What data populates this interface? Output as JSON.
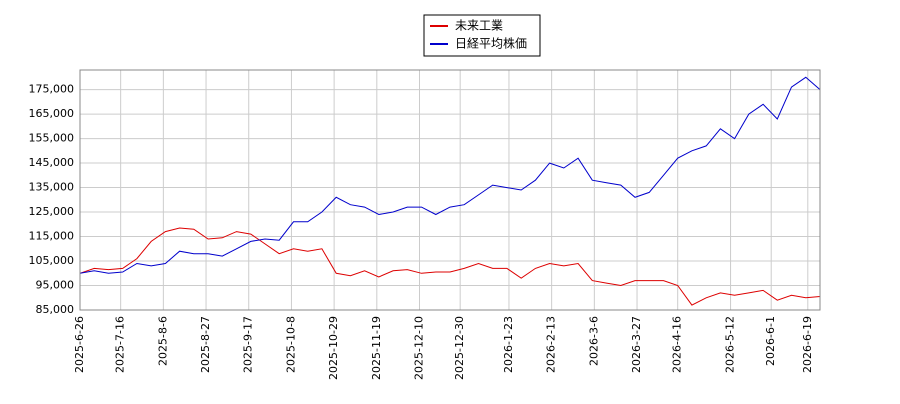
{
  "chart_data": {
    "type": "line",
    "x": [
      "2025-6-26",
      "2025-7-3",
      "2025-7-10",
      "2025-7-17",
      "2025-7-24",
      "2025-7-31",
      "2025-8-7",
      "2025-8-14",
      "2025-8-21",
      "2025-8-28",
      "2025-9-4",
      "2025-9-11",
      "2025-9-18",
      "2025-9-25",
      "2025-10-2",
      "2025-10-9",
      "2025-10-16",
      "2025-10-23",
      "2025-10-30",
      "2025-11-6",
      "2025-11-13",
      "2025-11-20",
      "2025-11-27",
      "2025-12-4",
      "2025-12-11",
      "2025-12-18",
      "2025-12-25",
      "2026-1-1",
      "2026-1-8",
      "2026-1-15",
      "2026-1-22",
      "2026-1-29",
      "2026-2-5",
      "2026-2-12",
      "2026-2-19",
      "2026-2-26",
      "2026-3-5",
      "2026-3-12",
      "2026-3-19",
      "2026-3-26",
      "2026-4-2",
      "2026-4-9",
      "2026-4-16",
      "2026-4-23",
      "2026-4-30",
      "2026-5-7",
      "2026-5-14",
      "2026-5-21",
      "2026-5-28",
      "2026-6-4",
      "2026-6-11",
      "2026-6-18",
      "2026-6-25"
    ],
    "series": [
      {
        "name": "未来工業",
        "color": "#dd0000",
        "values": [
          100000,
          102000,
          101500,
          102000,
          106000,
          113000,
          117000,
          118500,
          118000,
          114000,
          114500,
          117000,
          116000,
          112000,
          108000,
          110000,
          109000,
          110000,
          100000,
          99000,
          101000,
          98500,
          101000,
          101500,
          100000,
          100500,
          100500,
          102000,
          104000,
          102000,
          102000,
          98000,
          102000,
          104000,
          103000,
          104000,
          97000,
          96000,
          95000,
          97000,
          97000,
          97000,
          95000,
          87000,
          90000,
          92000,
          91000,
          92000,
          93000,
          89000,
          91000,
          90000,
          90500
        ]
      },
      {
        "name": "日経平均株価",
        "color": "#0000cc",
        "values": [
          100000,
          101000,
          100000,
          100500,
          104000,
          103000,
          104000,
          109000,
          108000,
          108000,
          107000,
          110000,
          113000,
          114000,
          113500,
          121000,
          121000,
          125000,
          131000,
          128000,
          127000,
          124000,
          125000,
          127000,
          127000,
          124000,
          127000,
          128000,
          132000,
          136000,
          135000,
          134000,
          138000,
          145000,
          143000,
          147000,
          138000,
          137000,
          136000,
          131000,
          133000,
          140000,
          147000,
          150000,
          152000,
          159000,
          155000,
          165000,
          169000,
          163000,
          176000,
          180000,
          175000
        ]
      }
    ],
    "xlim": [
      "2025-6-26",
      "2026-6-25"
    ],
    "xticks": [
      "2025-6-26",
      "2025-7-16",
      "2025-8-6",
      "2025-8-27",
      "2025-9-17",
      "2025-10-8",
      "2025-10-29",
      "2025-11-19",
      "2025-12-10",
      "2025-12-30",
      "2026-1-23",
      "2026-2-13",
      "2026-3-6",
      "2026-3-27",
      "2026-4-16",
      "2026-5-12",
      "2026-6-1",
      "2026-6-19"
    ],
    "ylim": [
      85000,
      183000
    ],
    "yticks": [
      {
        "value": 85000,
        "label": "85,000"
      },
      {
        "value": 95000,
        "label": "95,000"
      },
      {
        "value": 105000,
        "label": "105,000"
      },
      {
        "value": 115000,
        "label": "115,000"
      },
      {
        "value": 125000,
        "label": "125,000"
      },
      {
        "value": 135000,
        "label": "135,000"
      },
      {
        "value": 145000,
        "label": "145,000"
      },
      {
        "value": 155000,
        "label": "155,000"
      },
      {
        "value": 165000,
        "label": "165,000"
      },
      {
        "value": 175000,
        "label": "175,000"
      }
    ],
    "grid": true
  }
}
